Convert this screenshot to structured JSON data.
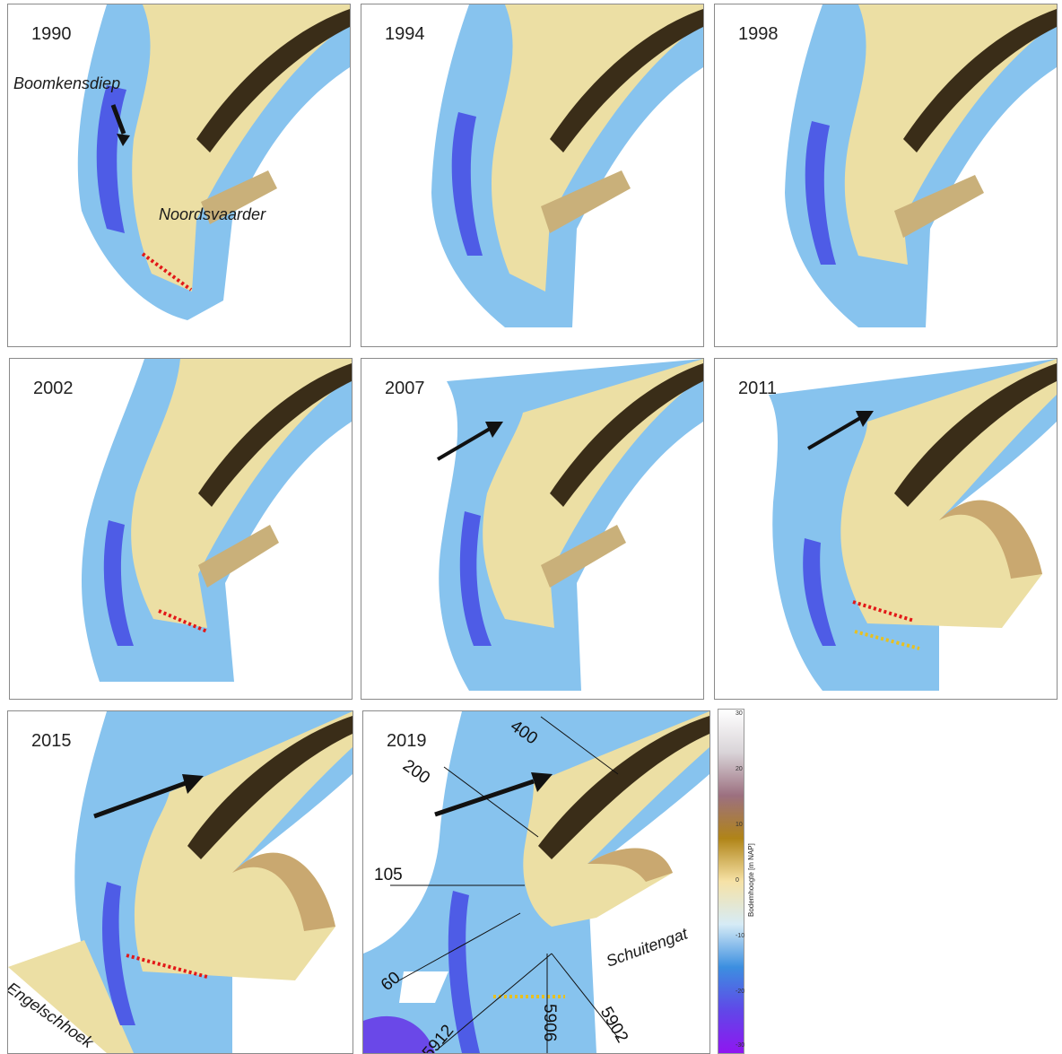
{
  "panels": [
    {
      "year": "1990"
    },
    {
      "year": "1994"
    },
    {
      "year": "1998"
    },
    {
      "year": "2002"
    },
    {
      "year": "2007"
    },
    {
      "year": "2011"
    },
    {
      "year": "2015"
    },
    {
      "year": "2019"
    }
  ],
  "labels": {
    "boomkensdiep": "Boomkensdiep",
    "noordsvaarder": "Noordsvaarder",
    "engelschhoek": "Engelschhoek",
    "schuitengat": "Schuitengat"
  },
  "transects": [
    "400",
    "200",
    "105",
    "60",
    "5912",
    "5906",
    "5902"
  ],
  "colorbar": {
    "title": "Bodemhoogte [m NAP]",
    "ticks": [
      "30",
      "20",
      "10",
      "0",
      "-10",
      "-20",
      "-30"
    ],
    "colors": [
      "#ffffff",
      "#d9d4d8",
      "#9c7080",
      "#b08418",
      "#f6e2a6",
      "#d6ebf6",
      "#3c8fe0",
      "#6048e8",
      "#8f16f0"
    ]
  }
}
